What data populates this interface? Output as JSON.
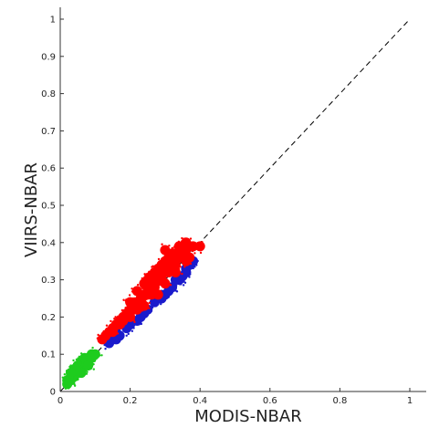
{
  "chart_data": {
    "type": "scatter",
    "title": "",
    "xlabel": "MODIS-NBAR",
    "ylabel": "VIIRS-NBAR",
    "xlim": [
      0,
      1.04
    ],
    "ylim": [
      0,
      1.03
    ],
    "xticks": [
      0,
      0.2,
      0.4,
      0.6,
      0.8,
      1
    ],
    "xtick_labels": [
      "0",
      "0.2",
      "0.4",
      "0.6",
      "0.8",
      "1"
    ],
    "yticks": [
      0,
      0.1,
      0.2,
      0.3,
      0.4,
      0.5,
      0.6,
      0.7,
      0.8,
      0.9,
      1
    ],
    "ytick_labels": [
      "0",
      "0.1",
      "0.2",
      "0.3",
      "0.4",
      "0.5",
      "0.6",
      "0.7",
      "0.8",
      "0.9",
      "1"
    ],
    "grid": false,
    "reference_line": {
      "label": "",
      "style": "dashed",
      "color": "#000000",
      "points": [
        [
          0,
          0
        ],
        [
          1,
          1
        ]
      ]
    },
    "series": [
      {
        "color": "#1a1acc",
        "points": [
          [
            0.17,
            0.15
          ],
          [
            0.2,
            0.18
          ],
          [
            0.22,
            0.19
          ],
          [
            0.25,
            0.22
          ],
          [
            0.28,
            0.25
          ],
          [
            0.3,
            0.26
          ],
          [
            0.32,
            0.28
          ],
          [
            0.34,
            0.3
          ],
          [
            0.36,
            0.32
          ],
          [
            0.37,
            0.34
          ],
          [
            0.35,
            0.31
          ],
          [
            0.33,
            0.3
          ],
          [
            0.31,
            0.27
          ],
          [
            0.27,
            0.24
          ],
          [
            0.24,
            0.21
          ],
          [
            0.21,
            0.19
          ],
          [
            0.19,
            0.17
          ],
          [
            0.16,
            0.14
          ],
          [
            0.38,
            0.35
          ],
          [
            0.36,
            0.33
          ],
          [
            0.29,
            0.25
          ],
          [
            0.23,
            0.2
          ],
          [
            0.15,
            0.14
          ],
          [
            0.14,
            0.13
          ]
        ]
      },
      {
        "color": "#ff0000",
        "points": [
          [
            0.12,
            0.14
          ],
          [
            0.13,
            0.15
          ],
          [
            0.14,
            0.16
          ],
          [
            0.15,
            0.17
          ],
          [
            0.16,
            0.18
          ],
          [
            0.17,
            0.19
          ],
          [
            0.18,
            0.2
          ],
          [
            0.19,
            0.21
          ],
          [
            0.2,
            0.22
          ],
          [
            0.21,
            0.23
          ],
          [
            0.22,
            0.24
          ],
          [
            0.23,
            0.25
          ],
          [
            0.24,
            0.26
          ],
          [
            0.25,
            0.27
          ],
          [
            0.26,
            0.28
          ],
          [
            0.27,
            0.29
          ],
          [
            0.28,
            0.3
          ],
          [
            0.29,
            0.31
          ],
          [
            0.3,
            0.32
          ],
          [
            0.31,
            0.33
          ],
          [
            0.32,
            0.34
          ],
          [
            0.33,
            0.35
          ],
          [
            0.34,
            0.36
          ],
          [
            0.35,
            0.37
          ],
          [
            0.36,
            0.38
          ],
          [
            0.15,
            0.16
          ],
          [
            0.17,
            0.18
          ],
          [
            0.19,
            0.2
          ],
          [
            0.21,
            0.22
          ],
          [
            0.23,
            0.24
          ],
          [
            0.25,
            0.26
          ],
          [
            0.27,
            0.28
          ],
          [
            0.29,
            0.3
          ],
          [
            0.31,
            0.32
          ],
          [
            0.33,
            0.34
          ],
          [
            0.35,
            0.36
          ],
          [
            0.2,
            0.24
          ],
          [
            0.22,
            0.27
          ],
          [
            0.24,
            0.29
          ],
          [
            0.26,
            0.31
          ],
          [
            0.28,
            0.33
          ],
          [
            0.3,
            0.35
          ],
          [
            0.32,
            0.37
          ],
          [
            0.25,
            0.3
          ],
          [
            0.27,
            0.32
          ],
          [
            0.29,
            0.34
          ],
          [
            0.31,
            0.36
          ],
          [
            0.34,
            0.39
          ],
          [
            0.18,
            0.19
          ],
          [
            0.22,
            0.22
          ],
          [
            0.26,
            0.26
          ],
          [
            0.3,
            0.29
          ],
          [
            0.33,
            0.32
          ],
          [
            0.36,
            0.35
          ],
          [
            0.37,
            0.36
          ],
          [
            0.28,
            0.26
          ],
          [
            0.24,
            0.23
          ],
          [
            0.2,
            0.2
          ],
          [
            0.33,
            0.37
          ],
          [
            0.35,
            0.39
          ],
          [
            0.3,
            0.38
          ],
          [
            0.38,
            0.39
          ],
          [
            0.4,
            0.39
          ],
          [
            0.36,
            0.4
          ]
        ]
      },
      {
        "color": "#1ecc1e",
        "points": [
          [
            0.02,
            0.03
          ],
          [
            0.03,
            0.04
          ],
          [
            0.04,
            0.05
          ],
          [
            0.05,
            0.06
          ],
          [
            0.06,
            0.07
          ],
          [
            0.07,
            0.08
          ],
          [
            0.08,
            0.09
          ],
          [
            0.09,
            0.1
          ],
          [
            0.03,
            0.03
          ],
          [
            0.04,
            0.04
          ],
          [
            0.05,
            0.05
          ],
          [
            0.06,
            0.06
          ],
          [
            0.07,
            0.07
          ],
          [
            0.08,
            0.08
          ],
          [
            0.04,
            0.06
          ],
          [
            0.05,
            0.07
          ],
          [
            0.06,
            0.08
          ],
          [
            0.07,
            0.09
          ],
          [
            0.09,
            0.09
          ],
          [
            0.1,
            0.1
          ],
          [
            0.02,
            0.02
          ],
          [
            0.03,
            0.05
          ],
          [
            0.06,
            0.05
          ],
          [
            0.08,
            0.07
          ]
        ]
      }
    ]
  }
}
